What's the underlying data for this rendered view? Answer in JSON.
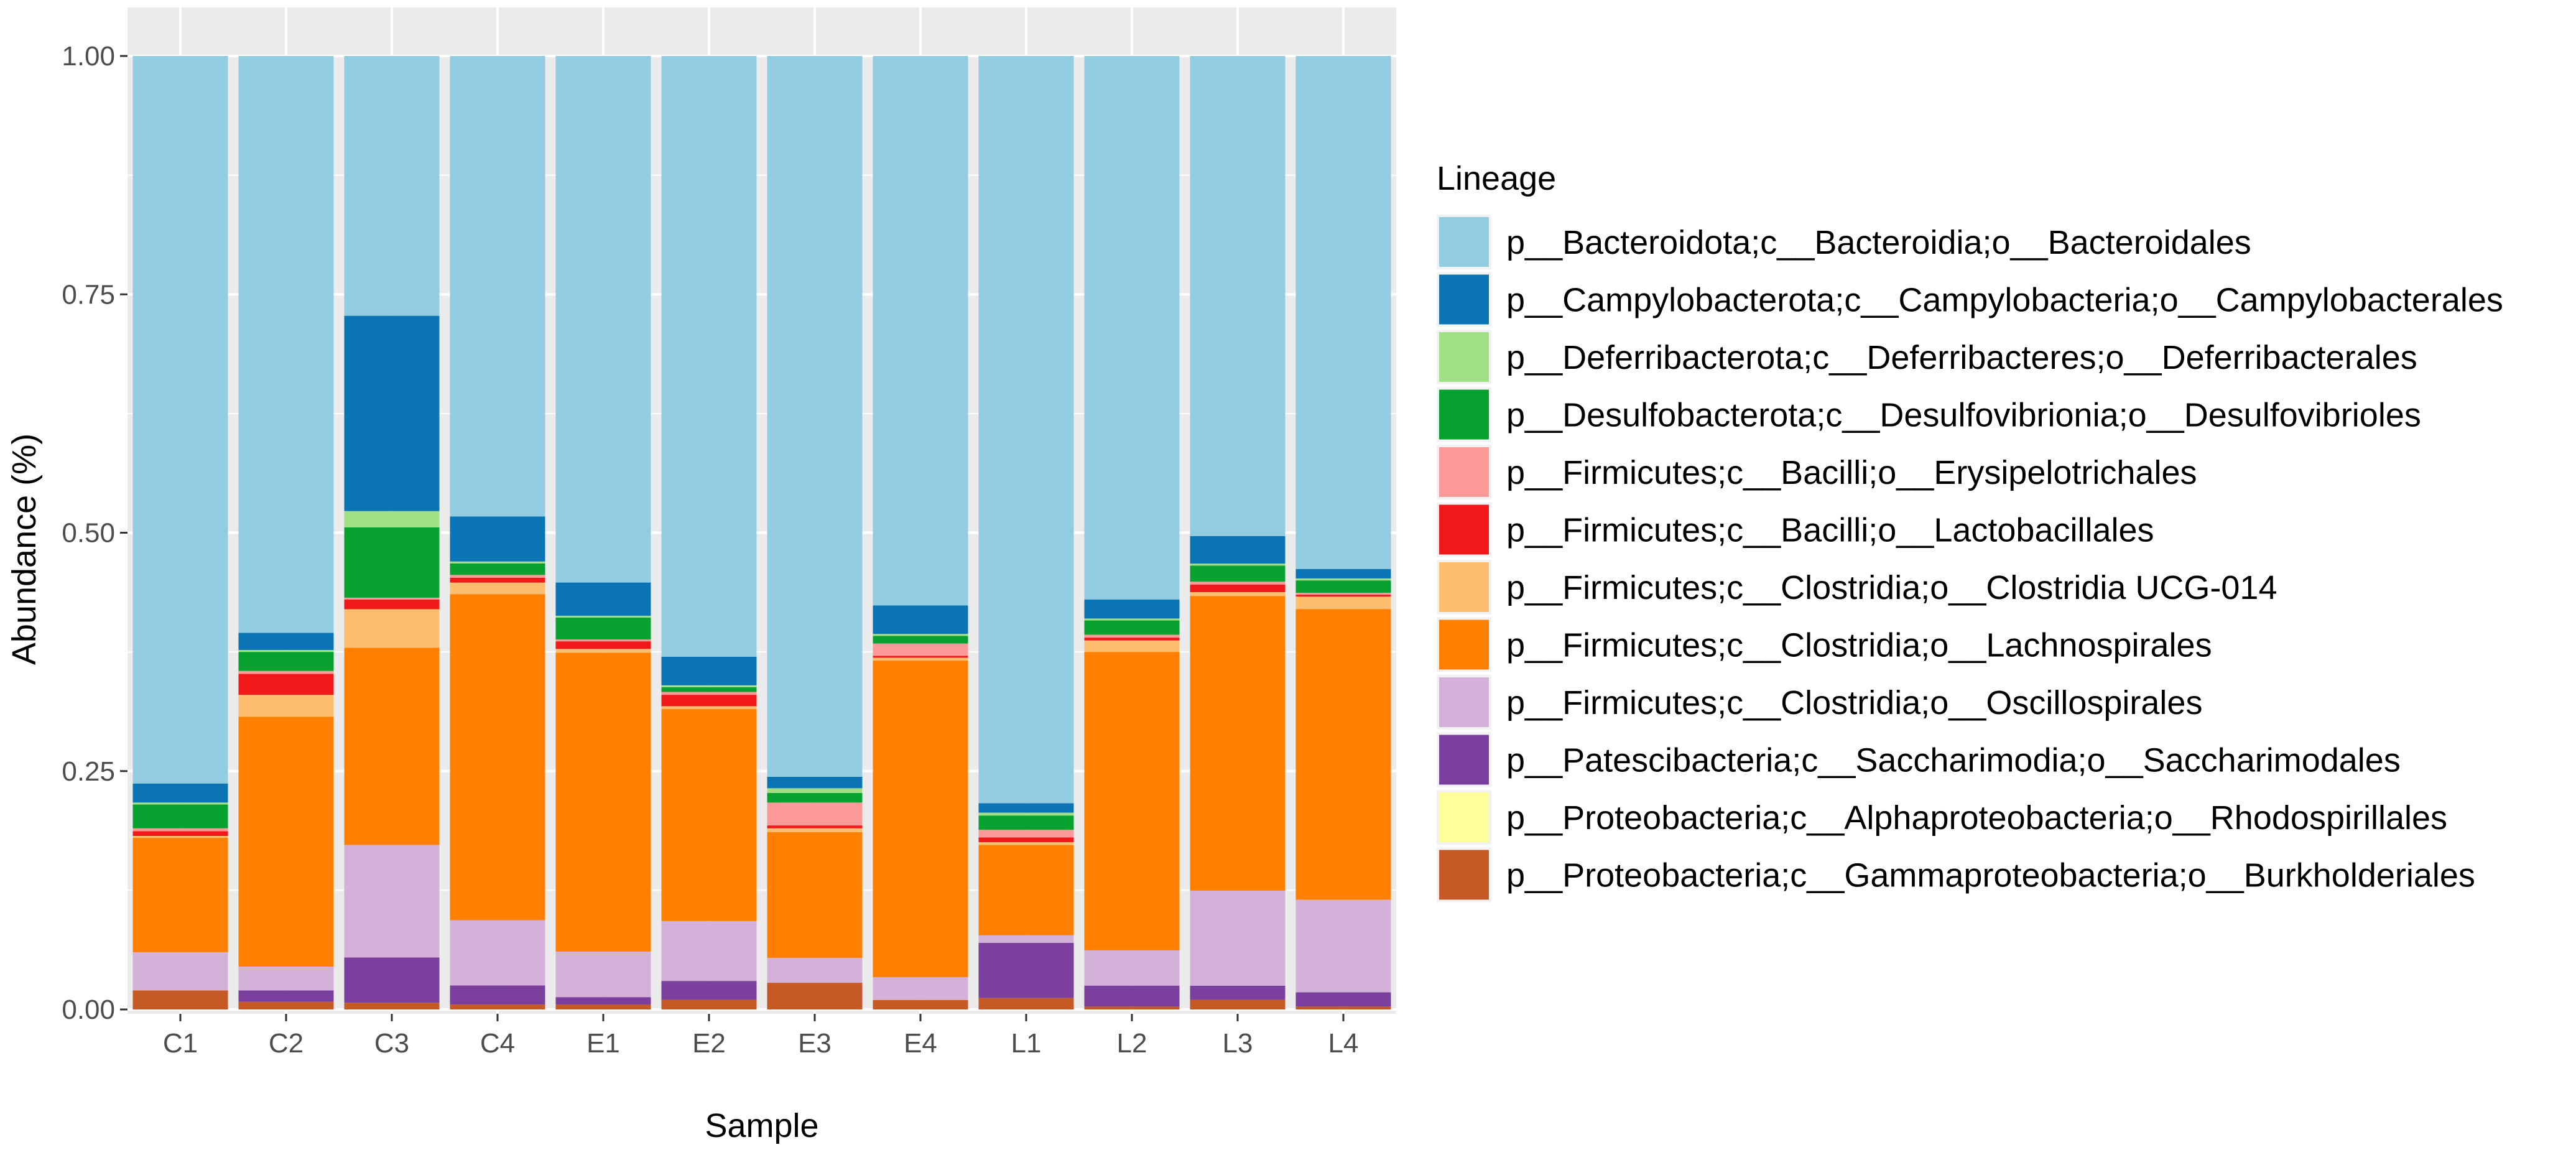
{
  "chart_data": {
    "type": "bar",
    "stacked": true,
    "title": "",
    "xlabel": "Sample",
    "ylabel": "Abundance (%)",
    "ylim": [
      0,
      1
    ],
    "yticks": [
      "0.00",
      "0.25",
      "0.50",
      "0.75",
      "1.00"
    ],
    "categories": [
      "C1",
      "C2",
      "C3",
      "C4",
      "E1",
      "E2",
      "E3",
      "E4",
      "L1",
      "L2",
      "L3",
      "L4"
    ],
    "legend_title": "Lineage",
    "legend_position": "right",
    "series": [
      {
        "name": "p__Proteobacteria;c__Gammaproteobacteria;o__Burkholderiales",
        "color": "#c55a26",
        "values": [
          0.02,
          0.008,
          0.007,
          0.005,
          0.005,
          0.01,
          0.028,
          0.01,
          0.012,
          0.003,
          0.01,
          0.003
        ]
      },
      {
        "name": "p__Proteobacteria;c__Alphaproteobacteria;o__Rhodospirillales",
        "color": "#ffff99",
        "values": [
          0.0,
          0.0,
          0.0,
          0.0,
          0.0,
          0.0,
          0.0,
          0.0,
          0.0,
          0.0,
          0.0,
          0.0
        ]
      },
      {
        "name": "p__Patescibacteria;c__Saccharimodia;o__Saccharimodales",
        "color": "#7b3f9d",
        "values": [
          0.0,
          0.012,
          0.047,
          0.02,
          0.008,
          0.02,
          0.0,
          0.0,
          0.058,
          0.022,
          0.015,
          0.015
        ]
      },
      {
        "name": "p__Firmicutes;c__Clostridia;o__Oscillospirales",
        "color": "#d3b1d9",
        "values": [
          0.04,
          0.025,
          0.117,
          0.068,
          0.048,
          0.063,
          0.026,
          0.024,
          0.008,
          0.037,
          0.1,
          0.097
        ]
      },
      {
        "name": "p__Firmicutes;c__Clostridia;o__Lachnospirales",
        "color": "#ff8000",
        "values": [
          0.12,
          0.262,
          0.205,
          0.34,
          0.315,
          0.223,
          0.132,
          0.333,
          0.095,
          0.313,
          0.31,
          0.305
        ]
      },
      {
        "name": "p__Firmicutes;c__Clostridia;o__Clostridia UCG-014",
        "color": "#fdbf6f",
        "values": [
          0.002,
          0.023,
          0.04,
          0.012,
          0.004,
          0.003,
          0.004,
          0.003,
          0.003,
          0.012,
          0.004,
          0.013
        ]
      },
      {
        "name": "p__Firmicutes;c__Bacilli;o__Lactobacillales",
        "color": "#f01818",
        "values": [
          0.005,
          0.022,
          0.01,
          0.005,
          0.008,
          0.012,
          0.003,
          0.002,
          0.005,
          0.003,
          0.008,
          0.002
        ]
      },
      {
        "name": "p__Firmicutes;c__Bacilli;o__Erysipelotrichales",
        "color": "#fb9a99",
        "values": [
          0.003,
          0.003,
          0.002,
          0.003,
          0.002,
          0.003,
          0.024,
          0.013,
          0.008,
          0.003,
          0.003,
          0.002
        ]
      },
      {
        "name": "p__Desulfobacterota;c__Desulfovibrionia;o__Desulfovibrioles",
        "color": "#06a12f",
        "values": [
          0.025,
          0.02,
          0.073,
          0.012,
          0.023,
          0.005,
          0.01,
          0.008,
          0.015,
          0.015,
          0.017,
          0.013
        ]
      },
      {
        "name": "p__Deferribacterota;c__Deferribacteres;o__Deferribacterales",
        "color": "#a2e088",
        "values": [
          0.002,
          0.002,
          0.017,
          0.002,
          0.002,
          0.002,
          0.005,
          0.002,
          0.003,
          0.002,
          0.002,
          0.002
        ]
      },
      {
        "name": "p__Campylobacterota;c__Campylobacteria;o__Campylobacterales",
        "color": "#0b74b5",
        "values": [
          0.02,
          0.018,
          0.203,
          0.047,
          0.035,
          0.03,
          0.012,
          0.03,
          0.01,
          0.02,
          0.029,
          0.01
        ]
      },
      {
        "name": "p__Bacteroidota;c__Bacteroidia;o__Bacteroidales",
        "color": "#92cce1",
        "values": [
          0.763,
          0.605,
          0.27,
          0.48,
          0.555,
          0.632,
          0.756,
          0.578,
          0.786,
          0.57,
          0.505,
          0.538
        ]
      }
    ]
  }
}
